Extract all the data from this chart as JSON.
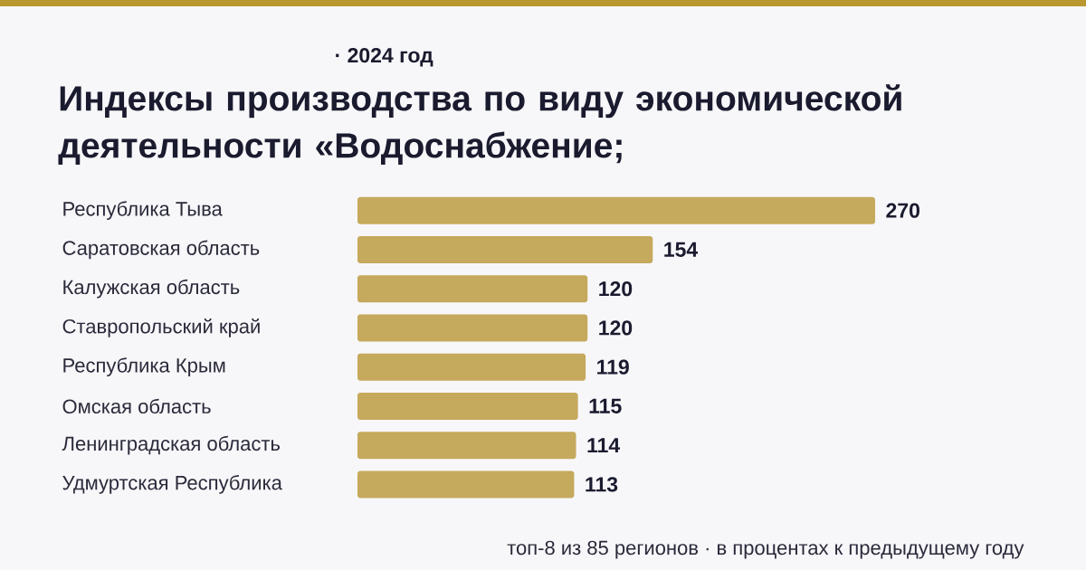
{
  "chart_data": {
    "type": "bar",
    "orientation": "horizontal",
    "subtitle": "· 2024 год",
    "title": "Индексы производства по виду экономической деятельности «Водоснабжение;",
    "categories": [
      "Республика Тыва",
      "Саратовская область",
      "Калужская область",
      "Ставропольский край",
      "Республика Крым",
      "Омская область",
      "Ленинградская область",
      "Удмуртская Республика"
    ],
    "values": [
      270,
      154,
      120,
      120,
      119,
      115,
      114,
      113
    ],
    "color": "#c5a95c",
    "data_labels": true,
    "annotations": [
      "топ-8 из 85 регионов · в процентах к предыдущему году"
    ]
  }
}
